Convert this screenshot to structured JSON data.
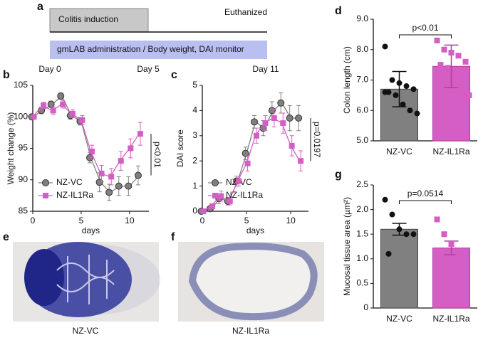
{
  "panel_labels": [
    "a",
    "b",
    "c",
    "d",
    "e",
    "f",
    "g"
  ],
  "timeline": {
    "induction": "Colitis induction",
    "monitor": "gmLAB administration / Body weight, DAI monitor",
    "end": "Euthanized",
    "days": [
      "Day 0",
      "Day 5",
      "Day 11"
    ]
  },
  "images": [
    {
      "caption": "NZ-VC"
    },
    {
      "caption": "NZ-IL1Ra"
    }
  ],
  "chart_data": [
    {
      "type": "line",
      "ylabel": "Weight change (%)",
      "xlabel": "days",
      "annotation": "p<0.01",
      "x": [
        0,
        1,
        2,
        3,
        4,
        5,
        6,
        7,
        8,
        9,
        10,
        11
      ],
      "xlim": [
        0,
        12
      ],
      "xticks": [
        0,
        5,
        10
      ],
      "ylim": [
        85,
        105
      ],
      "yticks": [
        85,
        90,
        95,
        100,
        105
      ],
      "legend": "lower left",
      "series": [
        {
          "name": "NZ-VC",
          "color": "#808080",
          "values": [
            100,
            101,
            102,
            103.3,
            100.2,
            99.3,
            93.5,
            89.6,
            88,
            89,
            89,
            90.7
          ],
          "errors": [
            0,
            0.5,
            0.5,
            0.5,
            0.6,
            0.6,
            0.8,
            1.5,
            1.3,
            1.5,
            1.5,
            1.5
          ]
        },
        {
          "name": "NZ-IL1Ra",
          "color": "#d45ec4",
          "values": [
            100,
            101.8,
            101,
            102,
            100.5,
            99.5,
            94.5,
            91,
            90.5,
            93,
            95,
            97.3
          ],
          "errors": [
            0,
            0.5,
            0.6,
            0.6,
            0.6,
            0.7,
            1,
            1.3,
            1.3,
            1.5,
            1.5,
            1.8
          ]
        }
      ]
    },
    {
      "type": "line",
      "ylabel": "DAI score",
      "xlabel": "days",
      "annotation": "p=0.0197",
      "x": [
        0,
        1,
        2,
        3,
        4,
        5,
        6,
        7,
        8,
        9,
        10,
        11
      ],
      "xlim": [
        0,
        12
      ],
      "xticks": [
        0,
        5,
        10
      ],
      "ylim": [
        0,
        5
      ],
      "yticks": [
        0,
        1,
        2,
        3,
        4,
        5
      ],
      "legend": "lower left",
      "series": [
        {
          "name": "NZ-VC",
          "color": "#808080",
          "values": [
            0,
            0.1,
            0.5,
            0.4,
            1.2,
            2.3,
            3.55,
            3.3,
            4.0,
            4.3,
            3.7,
            3.7
          ],
          "errors": [
            0,
            0.1,
            0.2,
            0.15,
            0.2,
            0.25,
            0.25,
            0.3,
            0.35,
            0.4,
            0.5,
            0.5
          ]
        },
        {
          "name": "NZ-IL1Ra",
          "color": "#d45ec4",
          "values": [
            0,
            0.2,
            0.6,
            0.4,
            1.2,
            1.9,
            3.0,
            3.5,
            3.7,
            3.5,
            2.6,
            2.0
          ],
          "errors": [
            0,
            0.1,
            0.2,
            0.15,
            0.2,
            0.3,
            0.3,
            0.3,
            0.35,
            0.4,
            0.4,
            0.4
          ]
        }
      ]
    },
    {
      "type": "bar",
      "ylabel": "Colon length (cm)",
      "annotation": "p<0.01",
      "categories": [
        "NZ-VC",
        "NZ-IL1Ra"
      ],
      "values": [
        6.7,
        7.45
      ],
      "errors": [
        0.58,
        0.7
      ],
      "colors": [
        "#808080",
        "#d45ec4"
      ],
      "points": [
        [
          8.1,
          7.0,
          6.9,
          6.8,
          6.7,
          6.6,
          6.5,
          6.2,
          6.0,
          5.9,
          6.6
        ],
        [
          8.3,
          8.0,
          7.9,
          7.8,
          7.6,
          7.5,
          7.4,
          7.3,
          7.0,
          6.5,
          5.9
        ]
      ],
      "ylim": [
        5,
        9
      ],
      "yticks": [
        {
          "value": 5,
          "label": "5.0"
        },
        {
          "value": 6,
          "label": "6.0"
        },
        {
          "value": 7,
          "label": "7.0"
        },
        {
          "value": 8,
          "label": "8.0"
        },
        {
          "value": 9,
          "label": "9.0"
        }
      ]
    },
    {
      "type": "bar",
      "ylabel": "Mucosal tissue area (µm²)",
      "annotation": "p=0.0514",
      "categories": [
        "NZ-VC",
        "NZ-IL1Ra"
      ],
      "values": [
        1.6,
        1.22
      ],
      "errors": [
        0.12,
        0.14
      ],
      "colors": [
        "#808080",
        "#d45ec4"
      ],
      "points": [
        [
          2.2,
          1.9,
          1.6,
          1.5,
          1.5,
          1.1
        ],
        [
          1.8,
          1.5,
          1.3,
          1.1,
          0.8,
          0.7
        ]
      ],
      "ylim": [
        0,
        2.5
      ],
      "yticks": [
        0,
        {
          "value": 0.5,
          "label": "0.5"
        },
        {
          "value": 1,
          "label": "1.0"
        },
        {
          "value": 1.5,
          "label": "1.5"
        },
        {
          "value": 2,
          "label": "2.0"
        },
        {
          "value": 2.5,
          "label": "2.5"
        }
      ]
    }
  ]
}
